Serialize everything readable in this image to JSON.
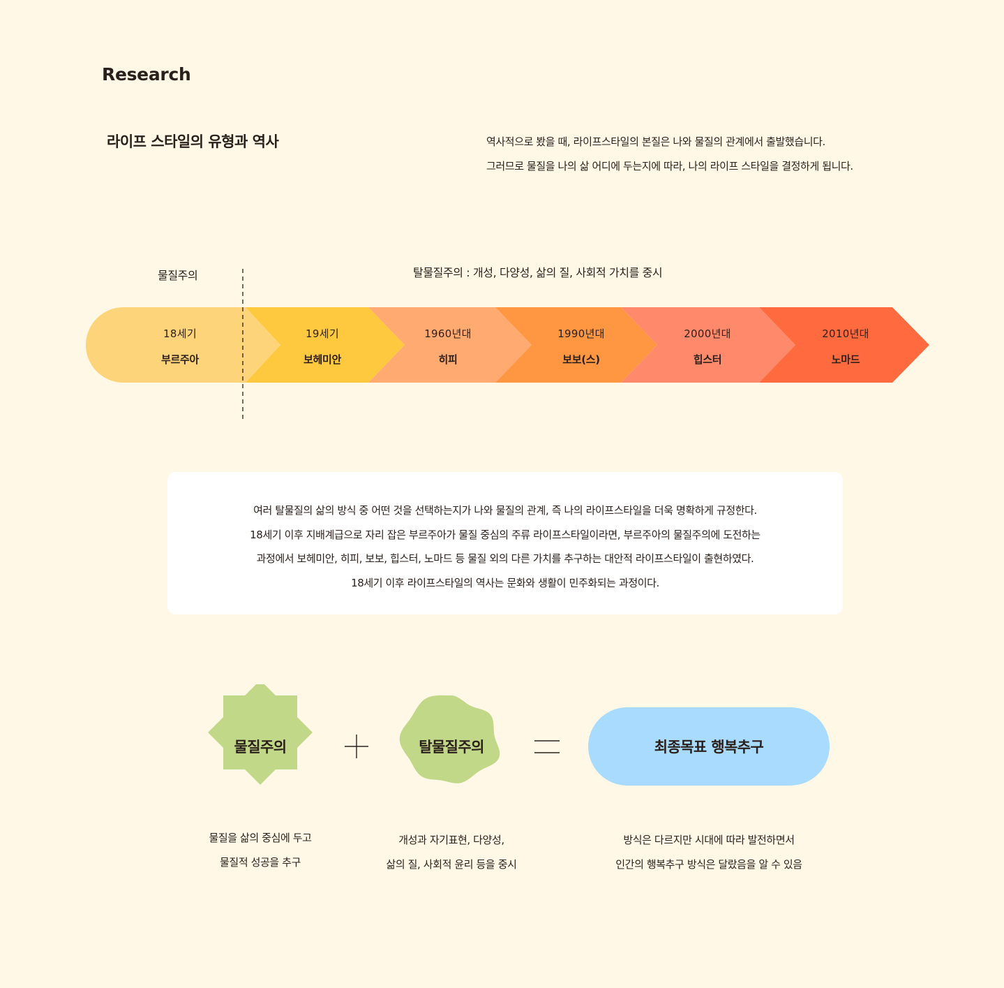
{
  "section_label": "Research",
  "heading": "라이프 스타일의 유형과 역사",
  "intro": {
    "line1": "역사적으로 봤을 때, 라이프스타일의 본질은 나와 물질의 관계에서 출발했습니다.",
    "line2": "그러므로 물질을 나의 삶 어디에 두는지에 따라, 나의 라이프 스타일을 결정하게 됩니다."
  },
  "eras": {
    "materialism": "물질주의",
    "post_materialism": "탈물질주의 : 개성, 다양성, 삶의 질, 사회적 가치를 중시"
  },
  "timeline": [
    {
      "year": "18세기",
      "name": "부르주아",
      "color": "#fdd47a"
    },
    {
      "year": "19세기",
      "name": "보헤미안",
      "color": "#ffc93f"
    },
    {
      "year": "1960년대",
      "name": "히피",
      "color": "#ffaa70"
    },
    {
      "year": "1990년대",
      "name": "보보(스)",
      "color": "#ff9642"
    },
    {
      "year": "2000년대",
      "name": "힙스터",
      "color": "#ff8a6b"
    },
    {
      "year": "2010년대",
      "name": "노마드",
      "color": "#ff6b3e"
    }
  ],
  "summary": {
    "line1": "여러 탈물질의 삶의 방식 중 어떤 것을 선택하는지가 나와 물질의 관계, 즉 나의 라이프스타일을 더욱 명확하게 규정한다.",
    "line2": "18세기 이후 지배계급으로 자리 잡은 부르주아가 물질 중심의 주류 라이프스타일이라면, 부르주아의 물질주의에 도전하는",
    "line3": "과정에서 보헤미안, 히피, 보보, 힙스터, 노마드 등 물질 외의 다른 가치를 추구하는 대안적 라이프스타일이 출현하였다.",
    "line4": "18세기 이후 라이프스타일의 역사는 문화와 생활이 민주화되는 과정이다."
  },
  "equation": {
    "left_label": "물질주의",
    "middle_label": "탈물질주의",
    "goal_label": "최종목표 행복추구",
    "shape_color": "#c2d889",
    "goal_color": "#a8dbfd"
  },
  "captions": {
    "left": {
      "line1": "물질을 삶의 중심에 두고",
      "line2": "물질적 성공을 추구"
    },
    "middle": {
      "line1": "개성과 자기표현, 다양성,",
      "line2": "삶의 질, 사회적 윤리 등을 중시"
    },
    "right": {
      "line1": "방식은 다르지만 시대에 따라 발전하면서",
      "line2": "인간의 행복추구 방식은 달랐음을 알 수 있음"
    }
  }
}
